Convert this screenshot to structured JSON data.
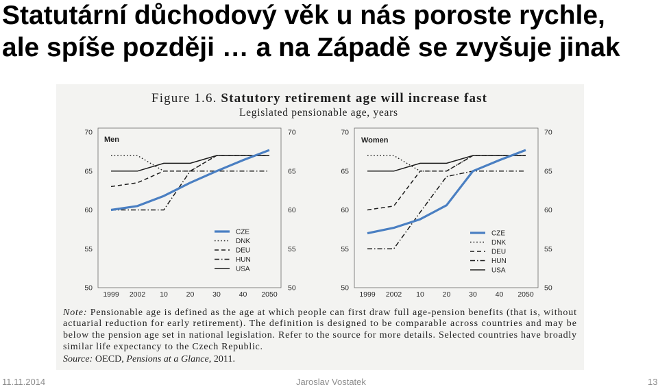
{
  "slide": {
    "title_line1": "Statutární důchodový věk u nás poroste rychle,",
    "title_line2": "ale spíše později … a na Západě se zvyšuje jinak",
    "footer_date": "11.11.2014",
    "footer_author": "Jaroslav Vostatek",
    "page_number": "13"
  },
  "figure": {
    "label": "Figure 1.6.",
    "title": "Statutory retirement age will increase fast",
    "subtitle": "Legislated pensionable age, years",
    "note_label": "Note:",
    "note_lines": [
      "Pensionable age is defined as the age at which people can first draw full age-pension benefits (that is, without",
      "actuarial reduction for early retirement). The definition is designed to be comparable across countries and may be",
      "below the pension age set in national legislation. Refer to the source for more details. Selected countries have broadly",
      "similar life expectancy to the Czech Republic."
    ],
    "source_label": "Source:",
    "source_prefix": "OECD,",
    "source_publication": "Pensions at a Glance",
    "source_suffix": ", 2011."
  },
  "colors": {
    "cze_line": "#4a7fc2",
    "other_lines": "#1c1c1c",
    "scan_background": "#f3f3f1",
    "footer_text": "#8c8c8c"
  },
  "chart_data": [
    {
      "type": "line",
      "title": "Men",
      "categories": [
        "1999",
        "2002",
        "10",
        "20",
        "30",
        "40",
        "2050"
      ],
      "ylim": [
        50,
        70
      ],
      "yticks": [
        70,
        65,
        60,
        55,
        50
      ],
      "y_axis_labels_both_sides": true,
      "grid": false,
      "legend": "lower-right",
      "series": [
        {
          "name": "CZE",
          "line_style": "solid-thick",
          "color": "#4a7fc2",
          "values": [
            60,
            60.5,
            61.8,
            63.5,
            65,
            66.4,
            67.7
          ]
        },
        {
          "name": "DNK",
          "line_style": "dotted",
          "color": "#1c1c1c",
          "values": [
            67,
            67,
            65,
            65,
            67,
            67,
            67
          ]
        },
        {
          "name": "DEU",
          "line_style": "dashed",
          "color": "#1c1c1c",
          "values": [
            63,
            63.5,
            65,
            65,
            67,
            67,
            67
          ]
        },
        {
          "name": "HUN",
          "line_style": "dash-dot",
          "color": "#1c1c1c",
          "values": [
            60,
            60,
            60,
            65,
            65,
            65,
            65
          ]
        },
        {
          "name": "USA",
          "line_style": "solid",
          "color": "#1c1c1c",
          "values": [
            65,
            65,
            66,
            66,
            67,
            67,
            67
          ]
        }
      ]
    },
    {
      "type": "line",
      "title": "Women",
      "categories": [
        "1999",
        "2002",
        "10",
        "20",
        "30",
        "40",
        "2050"
      ],
      "ylim": [
        50,
        70
      ],
      "yticks": [
        70,
        65,
        60,
        55,
        50
      ],
      "y_axis_labels_both_sides": true,
      "grid": false,
      "legend": "lower-right",
      "series": [
        {
          "name": "CZE",
          "line_style": "solid-thick",
          "color": "#4a7fc2",
          "values": [
            57,
            57.7,
            58.8,
            60.6,
            65,
            66.4,
            67.7
          ]
        },
        {
          "name": "DNK",
          "line_style": "dotted",
          "color": "#1c1c1c",
          "values": [
            67,
            67,
            65,
            65,
            67,
            67,
            67
          ]
        },
        {
          "name": "DEU",
          "line_style": "dashed",
          "color": "#1c1c1c",
          "values": [
            60,
            60.5,
            65,
            65,
            67,
            67,
            67
          ]
        },
        {
          "name": "HUN",
          "line_style": "dash-dot",
          "color": "#1c1c1c",
          "values": [
            55,
            55,
            59.7,
            64.3,
            65,
            65,
            65
          ]
        },
        {
          "name": "USA",
          "line_style": "solid",
          "color": "#1c1c1c",
          "values": [
            65,
            65,
            66,
            66,
            67,
            67,
            67
          ]
        }
      ]
    }
  ]
}
